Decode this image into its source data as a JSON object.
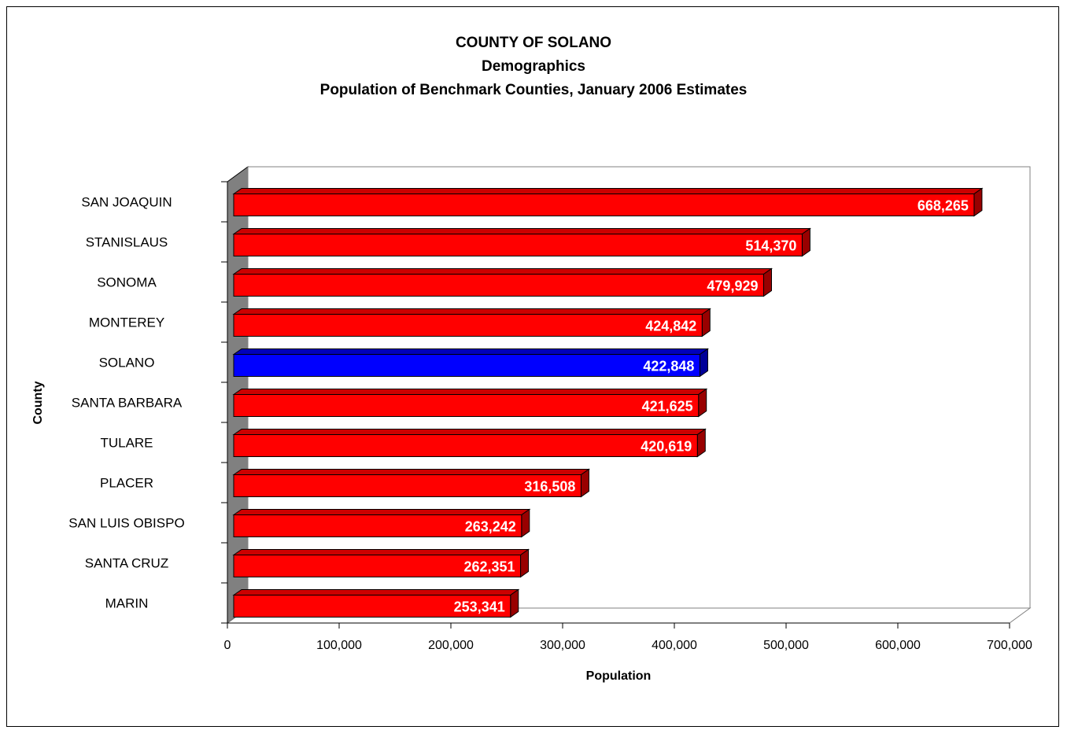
{
  "chart_data": {
    "type": "bar",
    "orientation": "horizontal",
    "title": "COUNTY OF SOLANO",
    "subtitle": "Demographics",
    "subtitle2": "Population of Benchmark Counties, January 2006 Estimates",
    "xlabel": "Population",
    "ylabel": "County",
    "categories": [
      "SAN JOAQUIN",
      "STANISLAUS",
      "SONOMA",
      "MONTEREY",
      "SOLANO",
      "SANTA BARBARA",
      "TULARE",
      "PLACER",
      "SAN LUIS OBISPO",
      "SANTA CRUZ",
      "MARIN"
    ],
    "values": [
      668265,
      514370,
      479929,
      424842,
      422848,
      421625,
      420619,
      316508,
      263242,
      262351,
      253341
    ],
    "value_labels": [
      "668,265",
      "514,370",
      "479,929",
      "424,842",
      "422,848",
      "421,625",
      "420,619",
      "316,508",
      "263,242",
      "262,351",
      "253,341"
    ],
    "highlight_category": "SOLANO",
    "xlim": [
      0,
      700000
    ],
    "x_ticks": [
      0,
      100000,
      200000,
      300000,
      400000,
      500000,
      600000,
      700000
    ],
    "x_tick_labels": [
      "0",
      "100,000",
      "200,000",
      "300,000",
      "400,000",
      "500,000",
      "600,000",
      "700,000"
    ],
    "grid": false,
    "legend": "none",
    "colors": {
      "bar": "#ff0000",
      "bar_top": "#cc0000",
      "bar_side": "#990000",
      "highlight": "#0000ff",
      "highlight_top": "#0000bb",
      "highlight_side": "#000099",
      "wall": "#808080"
    }
  }
}
